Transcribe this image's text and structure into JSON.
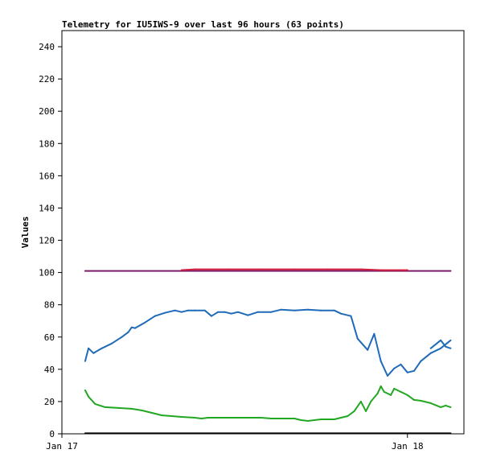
{
  "chart_data": {
    "type": "line",
    "title": "Telemetry for IU5IWS-9 over last 96 hours (63 points)",
    "xlabel": "",
    "ylabel": "Values",
    "xlim": [
      0,
      121
    ],
    "ylim": [
      0,
      250
    ],
    "y_ticks": [
      0,
      20,
      40,
      60,
      80,
      100,
      120,
      140,
      160,
      180,
      200,
      220,
      240
    ],
    "x_ticks": [
      {
        "label": "Jan 17",
        "x": 0
      },
      {
        "label": "Jan 18",
        "x": 104
      }
    ],
    "grid": false,
    "series": [
      {
        "color": "#7b1b6b",
        "x": [
          7,
          117
        ],
        "values": [
          101,
          101
        ]
      },
      {
        "color": "#d21c3c",
        "x": [
          36,
          40,
          50,
          60,
          70,
          80,
          90,
          96,
          104
        ],
        "values": [
          101.5,
          102,
          102,
          102,
          102,
          102,
          102,
          101.5,
          101.5
        ]
      },
      {
        "color": "#1f6bb8",
        "x": [
          7,
          8,
          9.5,
          12,
          15,
          18,
          20,
          21,
          22,
          25,
          28,
          31,
          34,
          36,
          38,
          40,
          43,
          45,
          47,
          49,
          51,
          53,
          56,
          59,
          63,
          66,
          70,
          74,
          78,
          82,
          84,
          87,
          89,
          92,
          94,
          96,
          98,
          100,
          102,
          104,
          106,
          108,
          111,
          114,
          117
        ],
        "values": [
          45,
          53,
          50,
          53,
          56,
          60,
          63,
          66,
          65.5,
          69,
          73,
          75,
          76.5,
          75.5,
          76.5,
          76.5,
          76.5,
          73,
          75.5,
          75.5,
          74.5,
          75.5,
          73.5,
          75.5,
          75.5,
          77,
          76.5,
          77,
          76.5,
          76.5,
          74.5,
          73,
          59,
          52,
          62,
          45,
          36,
          40.5,
          43,
          38,
          39,
          45,
          50,
          53,
          58
        ]
      },
      {
        "color": "#1f6bb8",
        "x": [
          111,
          114,
          115.5,
          117
        ],
        "values": [
          53,
          58,
          54,
          53
        ]
      },
      {
        "color": "#22a722",
        "x": [
          7,
          8,
          10,
          13,
          17,
          21,
          24,
          27,
          30,
          33,
          36,
          40,
          42,
          44,
          48,
          52,
          56,
          60,
          63,
          66,
          70,
          72,
          74,
          78,
          82,
          84,
          86,
          88,
          90,
          91.5,
          93,
          95,
          96,
          97,
          98,
          99,
          100,
          102,
          104,
          106,
          108,
          111,
          114,
          115.5,
          117
        ],
        "values": [
          27,
          23,
          18.5,
          16.5,
          16,
          15.5,
          14.5,
          13,
          11.5,
          11,
          10.5,
          10,
          9.5,
          10,
          10,
          10,
          10,
          10,
          9.5,
          9.5,
          9.5,
          8.5,
          8,
          9,
          9,
          10,
          11,
          14,
          20,
          14,
          20,
          25,
          29.5,
          26,
          25,
          24,
          28,
          26,
          24,
          21,
          20.5,
          19,
          16.5,
          17.5,
          16.5
        ]
      },
      {
        "color": "#000000",
        "x": [
          7,
          117
        ],
        "values": [
          0.3,
          0.3
        ]
      }
    ]
  }
}
